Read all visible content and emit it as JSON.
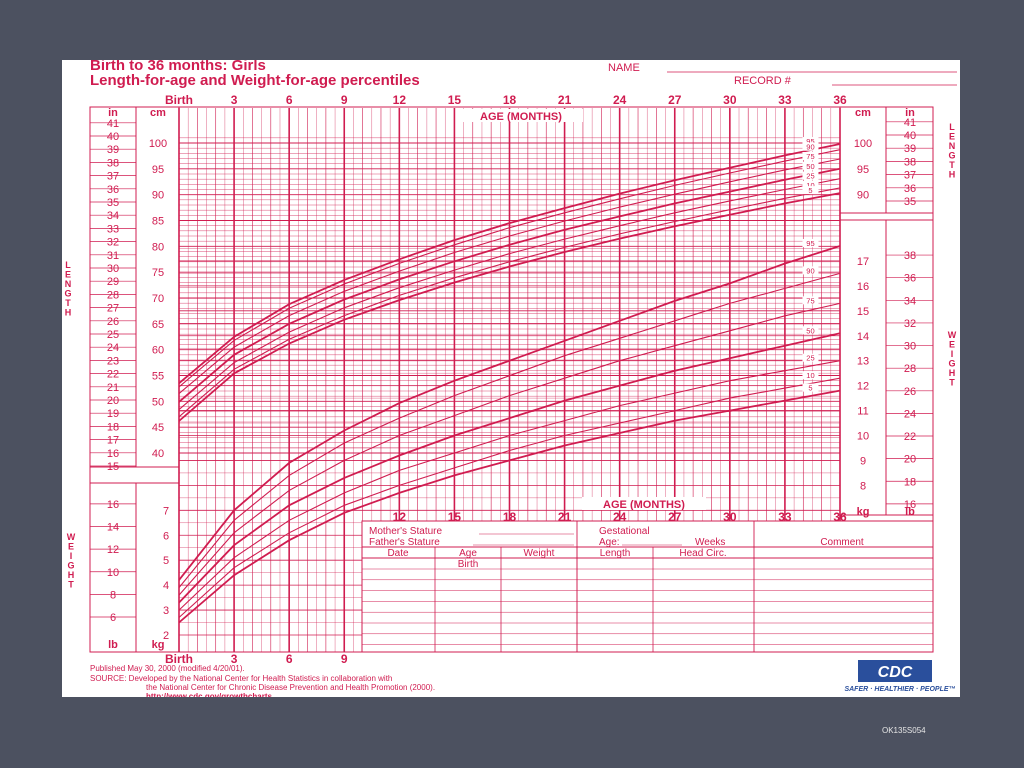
{
  "slide": {
    "footer_id": "OK135S054",
    "background_color": "#4c5160"
  },
  "chart_data": {
    "type": "line",
    "title": "Birth to 36 months: Girls",
    "subtitle": "Length-for-age and Weight-for-age percentiles",
    "name_label": "NAME",
    "record_label": "RECORD #",
    "accent_color": "#d01c50",
    "age_axis_label": "AGE (MONTHS)",
    "x_ticks": [
      "Birth",
      "3",
      "6",
      "9",
      "12",
      "15",
      "18",
      "21",
      "24",
      "27",
      "30",
      "33",
      "36"
    ],
    "xlim": [
      0,
      36
    ],
    "x_ticks_bottom": [
      "Birth",
      "3",
      "6",
      "9"
    ],
    "x_ticks_weight_axis": [
      "12",
      "15",
      "18",
      "21",
      "24",
      "27",
      "30",
      "33",
      "36"
    ],
    "length_side_label": "LENGTH",
    "weight_side_label": "WEIGHT",
    "unit_in": "in",
    "unit_cm": "cm",
    "unit_kg": "kg",
    "unit_lb": "lb",
    "length_in_ticks": [
      "15",
      "16",
      "17",
      "18",
      "19",
      "20",
      "21",
      "22",
      "23",
      "24",
      "25",
      "26",
      "27",
      "28",
      "29",
      "30",
      "31",
      "32",
      "33",
      "34",
      "35",
      "36",
      "37",
      "38",
      "39",
      "40",
      "41"
    ],
    "length_cm_ticks": [
      "40",
      "45",
      "50",
      "55",
      "60",
      "65",
      "70",
      "75",
      "80",
      "85",
      "90",
      "95",
      "100"
    ],
    "length_cm_right_ticks": [
      "90",
      "95",
      "100"
    ],
    "length_in_right_ticks": [
      "35",
      "36",
      "37",
      "38",
      "39",
      "40",
      "41"
    ],
    "weight_kg_left_ticks": [
      "2",
      "3",
      "4",
      "5",
      "6",
      "7"
    ],
    "weight_lb_left_ticks": [
      "6",
      "8",
      "10",
      "12",
      "14",
      "16"
    ],
    "weight_kg_right_ticks": [
      "8",
      "9",
      "10",
      "11",
      "12",
      "13",
      "14",
      "15",
      "16",
      "17"
    ],
    "weight_lb_right_ticks": [
      "16",
      "18",
      "20",
      "22",
      "24",
      "26",
      "28",
      "30",
      "32",
      "34",
      "36",
      "38"
    ],
    "percentile_labels": [
      "95",
      "90",
      "75",
      "50",
      "25",
      "10",
      "5"
    ],
    "length_series": [
      {
        "name": "95",
        "x": [
          0,
          3,
          6,
          9,
          12,
          15,
          18,
          21,
          24,
          27,
          30,
          33,
          36
        ],
        "y": [
          53.5,
          62.5,
          68.8,
          73.5,
          77.5,
          81.2,
          84.5,
          87.4,
          90.2,
          92.8,
          95.2,
          97.6,
          99.8
        ]
      },
      {
        "name": "90",
        "x": [
          0,
          3,
          6,
          9,
          12,
          15,
          18,
          21,
          24,
          27,
          30,
          33,
          36
        ],
        "y": [
          52.8,
          61.8,
          68.0,
          72.7,
          76.7,
          80.3,
          83.6,
          86.5,
          89.2,
          91.8,
          94.2,
          96.5,
          98.7
        ]
      },
      {
        "name": "75",
        "x": [
          0,
          3,
          6,
          9,
          12,
          15,
          18,
          21,
          24,
          27,
          30,
          33,
          36
        ],
        "y": [
          51.5,
          60.5,
          66.6,
          71.3,
          75.2,
          78.8,
          82.0,
          84.9,
          87.6,
          90.1,
          92.5,
          94.8,
          96.9
        ]
      },
      {
        "name": "50",
        "x": [
          0,
          3,
          6,
          9,
          12,
          15,
          18,
          21,
          24,
          27,
          30,
          33,
          36
        ],
        "y": [
          49.9,
          59.0,
          65.0,
          69.7,
          73.6,
          77.1,
          80.3,
          83.2,
          85.8,
          88.3,
          90.6,
          92.9,
          95.0
        ]
      },
      {
        "name": "25",
        "x": [
          0,
          3,
          6,
          9,
          12,
          15,
          18,
          21,
          24,
          27,
          30,
          33,
          36
        ],
        "y": [
          48.4,
          57.5,
          63.4,
          68.1,
          72.0,
          75.4,
          78.6,
          81.4,
          84.0,
          86.5,
          88.8,
          91.0,
          93.1
        ]
      },
      {
        "name": "10",
        "x": [
          0,
          3,
          6,
          9,
          12,
          15,
          18,
          21,
          24,
          27,
          30,
          33,
          36
        ],
        "y": [
          47.0,
          56.2,
          62.0,
          66.6,
          70.5,
          73.9,
          77.0,
          79.8,
          82.4,
          84.8,
          87.1,
          89.3,
          91.3
        ]
      },
      {
        "name": "5",
        "x": [
          0,
          3,
          6,
          9,
          12,
          15,
          18,
          21,
          24,
          27,
          30,
          33,
          36
        ],
        "y": [
          46.2,
          55.4,
          61.2,
          65.8,
          69.6,
          73.0,
          76.1,
          78.9,
          81.5,
          83.9,
          86.1,
          88.3,
          90.3
        ]
      }
    ],
    "weight_series": [
      {
        "name": "95",
        "x": [
          0,
          3,
          6,
          9,
          12,
          15,
          18,
          21,
          24,
          27,
          30,
          33,
          36
        ],
        "y": [
          4.2,
          7.0,
          8.9,
          10.2,
          11.3,
          12.2,
          13.0,
          13.8,
          14.6,
          15.4,
          16.1,
          16.9,
          17.6
        ]
      },
      {
        "name": "90",
        "x": [
          0,
          3,
          6,
          9,
          12,
          15,
          18,
          21,
          24,
          27,
          30,
          33,
          36
        ],
        "y": [
          3.9,
          6.6,
          8.4,
          9.7,
          10.7,
          11.6,
          12.4,
          13.2,
          13.9,
          14.6,
          15.3,
          15.9,
          16.5
        ]
      },
      {
        "name": "75",
        "x": [
          0,
          3,
          6,
          9,
          12,
          15,
          18,
          21,
          24,
          27,
          30,
          33,
          36
        ],
        "y": [
          3.6,
          6.1,
          7.8,
          9.0,
          10.0,
          10.8,
          11.6,
          12.3,
          13.0,
          13.6,
          14.2,
          14.8,
          15.3
        ]
      },
      {
        "name": "50",
        "x": [
          0,
          3,
          6,
          9,
          12,
          15,
          18,
          21,
          24,
          27,
          30,
          33,
          36
        ],
        "y": [
          3.3,
          5.6,
          7.2,
          8.3,
          9.2,
          10.0,
          10.7,
          11.4,
          12.0,
          12.6,
          13.1,
          13.6,
          14.1
        ]
      },
      {
        "name": "25",
        "x": [
          0,
          3,
          6,
          9,
          12,
          15,
          18,
          21,
          24,
          27,
          30,
          33,
          36
        ],
        "y": [
          3.0,
          5.1,
          6.6,
          7.7,
          8.6,
          9.3,
          10.0,
          10.6,
          11.2,
          11.7,
          12.2,
          12.6,
          13.0
        ]
      },
      {
        "name": "10",
        "x": [
          0,
          3,
          6,
          9,
          12,
          15,
          18,
          21,
          24,
          27,
          30,
          33,
          36
        ],
        "y": [
          2.7,
          4.7,
          6.1,
          7.2,
          8.0,
          8.7,
          9.4,
          10.0,
          10.5,
          11.0,
          11.5,
          11.9,
          12.3
        ]
      },
      {
        "name": "5",
        "x": [
          0,
          3,
          6,
          9,
          12,
          15,
          18,
          21,
          24,
          27,
          30,
          33,
          36
        ],
        "y": [
          2.5,
          4.4,
          5.8,
          6.9,
          7.7,
          8.4,
          9.0,
          9.6,
          10.1,
          10.6,
          11.0,
          11.4,
          11.8
        ]
      }
    ],
    "form": {
      "mothers_stature": "Mother's Stature",
      "fathers_stature": "Father's Stature",
      "gestational": "Gestational",
      "age": "Age:",
      "weeks": "Weeks",
      "comment": "Comment",
      "columns": [
        "Date",
        "Age",
        "Weight",
        "Length",
        "Head Circ."
      ],
      "first_row_age": "Birth"
    },
    "published": "Published May 30, 2000 (modified 4/20/01).",
    "source_line1": "SOURCE: Developed by the National Center for Health Statistics in collaboration with",
    "source_line2": "the National Center for Chronic Disease Prevention and Health Promotion (2000).",
    "source_url": "http://www.cdc.gov/growthcharts",
    "logo_text": "CDC",
    "tagline": "SAFER · HEALTHIER · PEOPLE™"
  }
}
